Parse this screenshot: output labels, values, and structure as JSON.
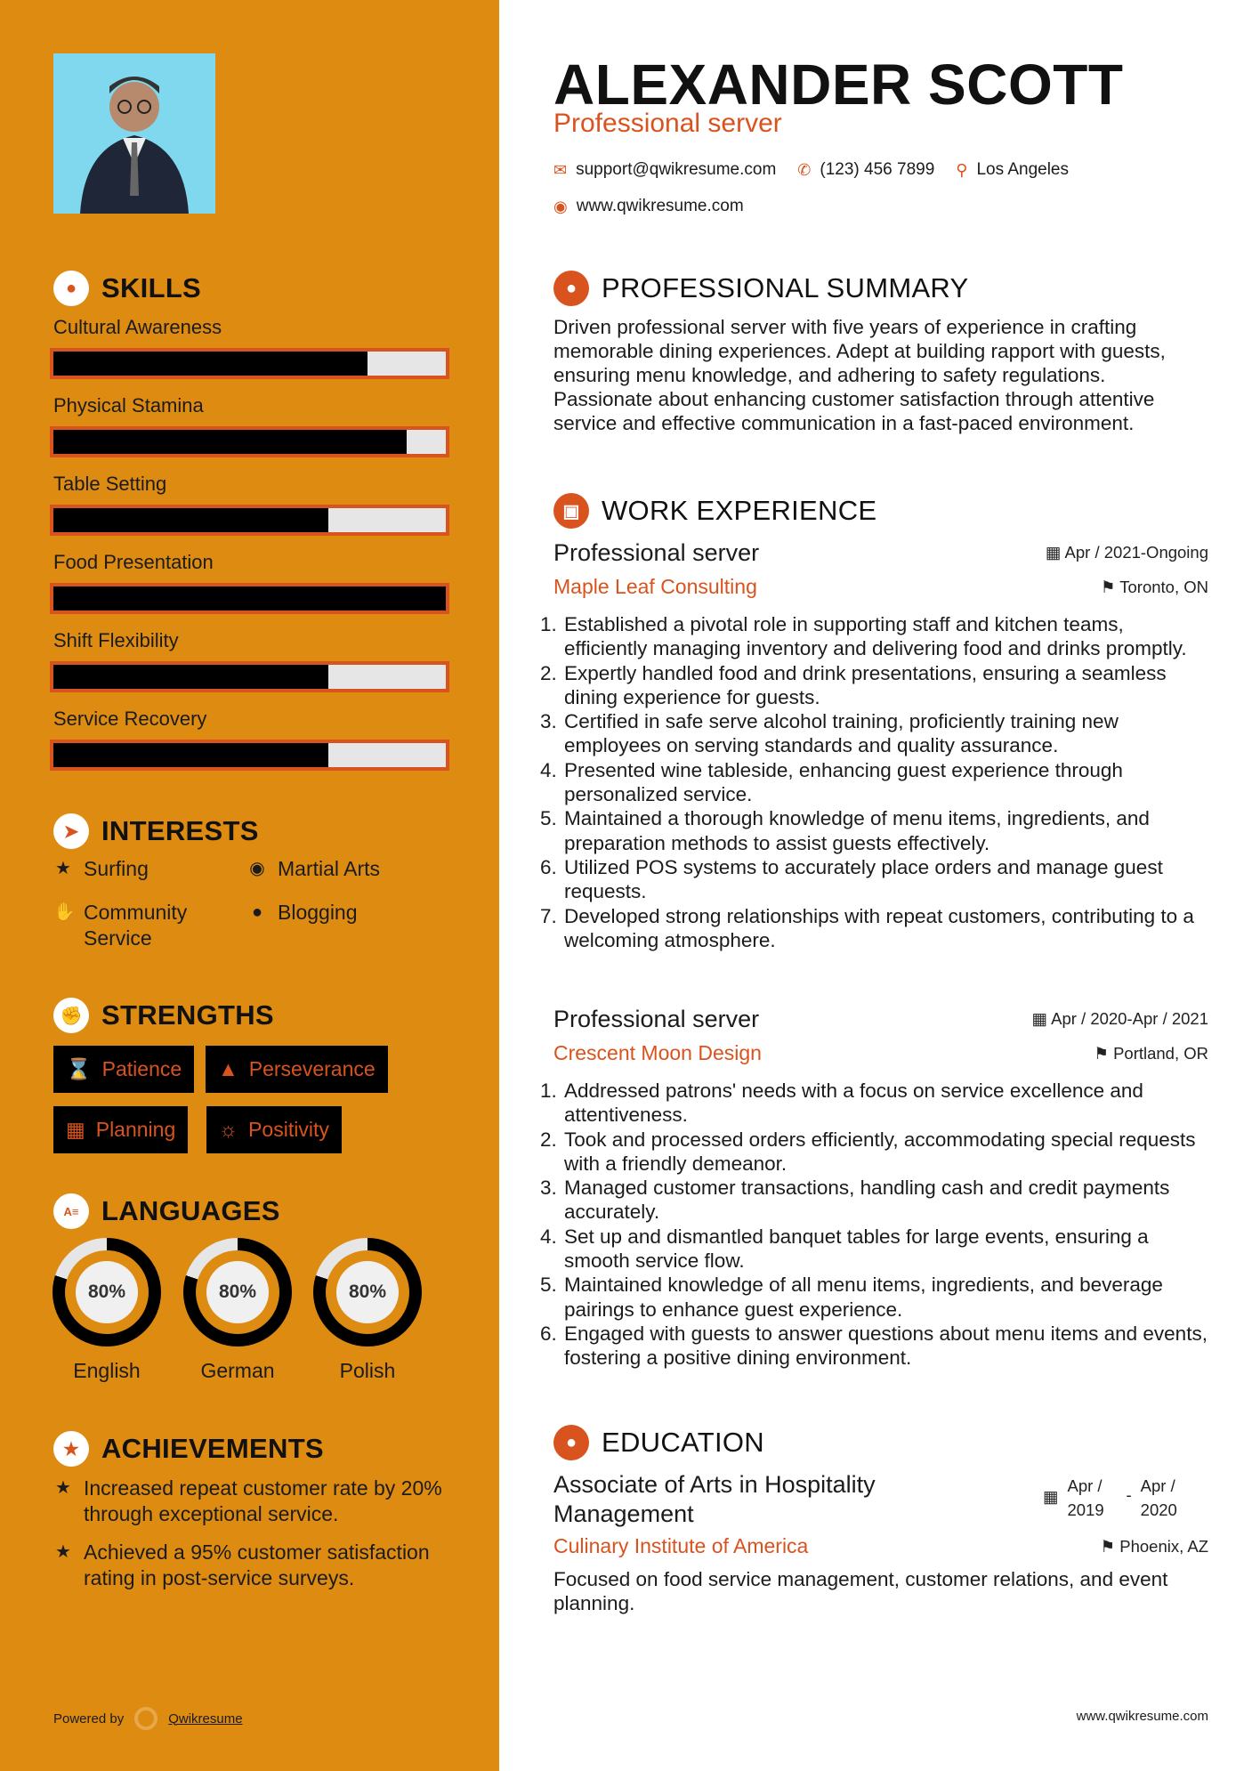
{
  "colors": {
    "sidebar": "#DE8B12",
    "accent": "#D9531E",
    "bar_fill": "#000000",
    "bar_empty": "#E6E6E6"
  },
  "header": {
    "name": "ALEXANDER SCOTT",
    "title": "Professional server",
    "email": "support@qwikresume.com",
    "phone": "(123) 456 7899",
    "location": "Los Angeles",
    "website": "www.qwikresume.com"
  },
  "skills": {
    "heading": "SKILLS",
    "items": [
      {
        "label": "Cultural Awareness",
        "level": 80
      },
      {
        "label": "Physical Stamina",
        "level": 90
      },
      {
        "label": "Table Setting",
        "level": 70
      },
      {
        "label": "Food Presentation",
        "level": 100
      },
      {
        "label": "Shift Flexibility",
        "level": 70
      },
      {
        "label": "Service Recovery",
        "level": 70
      }
    ]
  },
  "interests": {
    "heading": "INTERESTS",
    "items": [
      {
        "label": "Surfing",
        "icon": "star-icon"
      },
      {
        "label": "Martial Arts",
        "icon": "globe-icon"
      },
      {
        "label": "Community Service",
        "icon": "hand-icon"
      },
      {
        "label": "Blogging",
        "icon": "users-icon"
      }
    ]
  },
  "strengths": {
    "heading": "STRENGTHS",
    "items": [
      {
        "label": "Patience",
        "icon": "hourglass-icon"
      },
      {
        "label": "Perseverance",
        "icon": "road-icon"
      },
      {
        "label": "Planning",
        "icon": "calendar-icon"
      },
      {
        "label": "Positivity",
        "icon": "sun-icon"
      }
    ]
  },
  "languages": {
    "heading": "LANGUAGES",
    "items": [
      {
        "label": "English",
        "percent": 80,
        "text": "80%"
      },
      {
        "label": "German",
        "percent": 80,
        "text": "80%"
      },
      {
        "label": "Polish",
        "percent": 80,
        "text": "80%"
      }
    ]
  },
  "achievements": {
    "heading": "ACHIEVEMENTS",
    "items": [
      "Increased repeat customer rate by 20% through exceptional service.",
      "Achieved a 95% customer satisfaction rating in post-service surveys."
    ]
  },
  "footer": {
    "powered_by": "Powered by",
    "brand": "Qwikresume",
    "website": "www.qwikresume.com"
  },
  "summary": {
    "heading": "PROFESSIONAL SUMMARY",
    "text": "Driven professional server with five years of experience in crafting memorable dining experiences. Adept at building rapport with guests, ensuring menu knowledge, and adhering to safety regulations. Passionate about enhancing customer satisfaction through attentive service and effective communication in a fast-paced environment."
  },
  "experience": {
    "heading": "WORK EXPERIENCE",
    "jobs": [
      {
        "title": "Professional server",
        "dates": "Apr / 2021-Ongoing",
        "company": "Maple Leaf Consulting",
        "location": "Toronto, ON",
        "bullets": [
          "Established a pivotal role in supporting staff and kitchen teams, efficiently managing inventory and delivering food and drinks promptly.",
          "Expertly handled food and drink presentations, ensuring a seamless dining experience for guests.",
          "Certified in safe serve alcohol training, proficiently training new employees on serving standards and quality assurance.",
          "Presented wine tableside, enhancing guest experience through personalized service.",
          "Maintained a thorough knowledge of menu items, ingredients, and preparation methods to assist guests effectively.",
          "Utilized POS systems to accurately place orders and manage guest requests.",
          "Developed strong relationships with repeat customers, contributing to a welcoming atmosphere."
        ]
      },
      {
        "title": "Professional server",
        "dates": "Apr / 2020-Apr / 2021",
        "company": "Crescent Moon Design",
        "location": "Portland, OR",
        "bullets": [
          "Addressed patrons' needs with a focus on service excellence and attentiveness.",
          "Took and processed orders efficiently, accommodating special requests with a friendly demeanor.",
          "Managed customer transactions, handling cash and credit payments accurately.",
          "Set up and dismantled banquet tables for large events, ensuring a smooth service flow.",
          "Maintained knowledge of all menu items, ingredients, and beverage pairings to enhance guest experience.",
          "Engaged with guests to answer questions about menu items and events, fostering a positive dining environment."
        ]
      }
    ]
  },
  "education": {
    "heading": "EDUCATION",
    "degree": "Associate of Arts in Hospitality Management",
    "start": "Apr / 2019",
    "end": "Apr / 2020",
    "school": "Culinary Institute of America",
    "location": "Phoenix, AZ",
    "description": "Focused on food service management, customer relations, and event planning."
  }
}
